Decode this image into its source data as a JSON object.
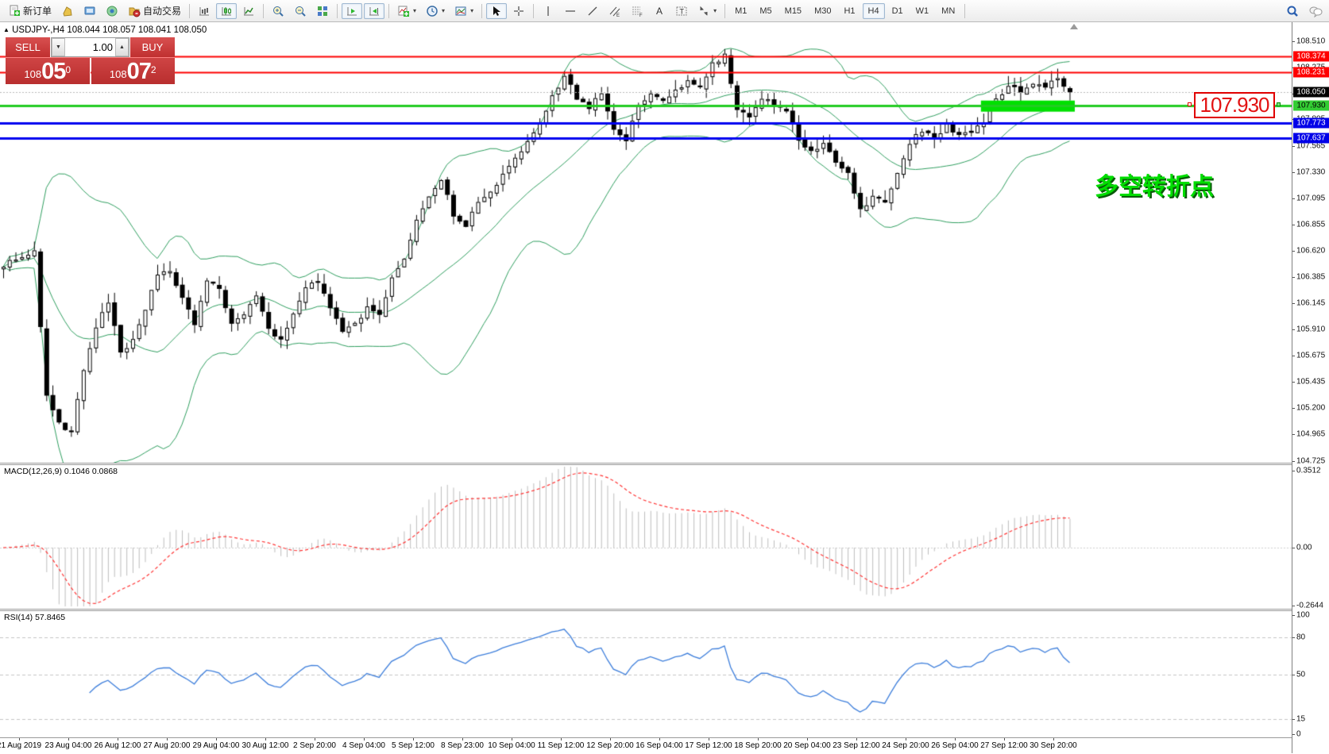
{
  "toolbar": {
    "items": [
      {
        "name": "new-order-button",
        "icon": "doc-plus",
        "label": "新订单"
      },
      {
        "name": "profiles-button",
        "icon": "profile"
      },
      {
        "name": "market-watch-button",
        "icon": "market-watch"
      },
      {
        "name": "navigator-button",
        "icon": "navigator"
      },
      {
        "name": "auto-trading-button",
        "icon": "autotrade",
        "label": "自动交易"
      },
      {
        "type": "sep"
      },
      {
        "name": "bar-chart-button",
        "icon": "bars"
      },
      {
        "name": "candle-chart-button",
        "icon": "candles",
        "active": true
      },
      {
        "name": "line-chart-button",
        "icon": "linechart"
      },
      {
        "type": "sep"
      },
      {
        "name": "zoom-in-button",
        "icon": "zoom-in"
      },
      {
        "name": "zoom-out-button",
        "icon": "zoom-out"
      },
      {
        "name": "tile-windows-button",
        "icon": "tile"
      },
      {
        "type": "sep"
      },
      {
        "name": "auto-scroll-button",
        "icon": "autoscroll",
        "active": true
      },
      {
        "name": "chart-shift-button",
        "icon": "shift",
        "active": true
      },
      {
        "type": "sep"
      },
      {
        "name": "indicators-button",
        "icon": "indicators",
        "dropdown": true
      },
      {
        "name": "periods-button",
        "icon": "clock",
        "dropdown": true
      },
      {
        "name": "templates-button",
        "icon": "template",
        "dropdown": true
      },
      {
        "type": "sep"
      },
      {
        "name": "cursor-button",
        "icon": "cursor",
        "active": true
      },
      {
        "name": "crosshair-button",
        "icon": "crosshair"
      },
      {
        "type": "sep"
      },
      {
        "name": "vertical-line-button",
        "icon": "vline"
      },
      {
        "name": "horizontal-line-button",
        "icon": "hline"
      },
      {
        "name": "trendline-button",
        "icon": "trend"
      },
      {
        "name": "channel-button",
        "icon": "channel"
      },
      {
        "name": "fibonacci-button",
        "icon": "fibo"
      },
      {
        "name": "text-button",
        "icon": "text"
      },
      {
        "name": "text-label-button",
        "icon": "tlabel"
      },
      {
        "name": "arrows-button",
        "icon": "arrows",
        "dropdown": true
      },
      {
        "type": "sep"
      },
      {
        "type": "tf",
        "name": "timeframe-m1",
        "label": "M1"
      },
      {
        "type": "tf",
        "name": "timeframe-m5",
        "label": "M5"
      },
      {
        "type": "tf",
        "name": "timeframe-m15",
        "label": "M15"
      },
      {
        "type": "tf",
        "name": "timeframe-m30",
        "label": "M30"
      },
      {
        "type": "tf",
        "name": "timeframe-h1",
        "label": "H1"
      },
      {
        "type": "tf",
        "name": "timeframe-h4",
        "label": "H4",
        "active": true
      },
      {
        "type": "tf",
        "name": "timeframe-d1",
        "label": "D1"
      },
      {
        "type": "tf",
        "name": "timeframe-w1",
        "label": "W1"
      },
      {
        "type": "tf",
        "name": "timeframe-mn",
        "label": "MN"
      },
      {
        "type": "sep"
      },
      {
        "type": "spacer"
      },
      {
        "name": "search-button",
        "icon": "search"
      },
      {
        "name": "chat-button",
        "icon": "chat"
      }
    ]
  },
  "chart_header": {
    "collapse_marker": "▲",
    "title": "USDJPY-,H4",
    "ohlc_text": "108.044 108.057 108.041 108.050"
  },
  "trade_panel": {
    "sell_label": "SELL",
    "buy_label": "BUY",
    "volume": "1.00",
    "sell_price": {
      "big_left": "108",
      "big": "05",
      "sup": "0"
    },
    "buy_price": {
      "big_left": "108",
      "big": "07",
      "sup": "2"
    }
  },
  "indicator_labels": {
    "macd": "MACD(12,26,9) 0.1046 0.0868",
    "rsi": "RSI(14) 57.8465"
  },
  "objects": {
    "callout_text": "107.930",
    "annotation_text": "多空转折点"
  },
  "chart_data": {
    "type": "candlestick",
    "symbol": "USDJPY",
    "timeframe": "H4",
    "current_ohlc": {
      "open": 108.044,
      "high": 108.057,
      "low": 108.041,
      "close": 108.05
    },
    "bid": "108.050",
    "ask": "108.072",
    "ylim": [
      104.715,
      108.68
    ],
    "n_candles": 174,
    "close_anchors": [
      [
        0,
        106.5
      ],
      [
        3,
        106.58
      ],
      [
        5,
        106.6
      ],
      [
        7,
        105.3
      ],
      [
        9,
        105.05
      ],
      [
        11,
        104.97
      ],
      [
        13,
        105.55
      ],
      [
        15,
        105.95
      ],
      [
        17,
        106.15
      ],
      [
        19,
        105.7
      ],
      [
        21,
        105.8
      ],
      [
        23,
        106.1
      ],
      [
        25,
        106.4
      ],
      [
        27,
        106.42
      ],
      [
        29,
        106.18
      ],
      [
        31,
        105.95
      ],
      [
        33,
        106.35
      ],
      [
        35,
        106.3
      ],
      [
        37,
        105.95
      ],
      [
        39,
        106.05
      ],
      [
        41,
        106.2
      ],
      [
        43,
        105.9
      ],
      [
        45,
        105.8
      ],
      [
        47,
        106.05
      ],
      [
        49,
        106.3
      ],
      [
        51,
        106.32
      ],
      [
        53,
        106.1
      ],
      [
        55,
        105.9
      ],
      [
        57,
        105.95
      ],
      [
        59,
        106.1
      ],
      [
        61,
        106.05
      ],
      [
        63,
        106.4
      ],
      [
        65,
        106.55
      ],
      [
        67,
        106.9
      ],
      [
        69,
        107.1
      ],
      [
        71,
        107.25
      ],
      [
        73,
        106.95
      ],
      [
        75,
        106.85
      ],
      [
        77,
        107.05
      ],
      [
        79,
        107.15
      ],
      [
        81,
        107.3
      ],
      [
        83,
        107.45
      ],
      [
        85,
        107.6
      ],
      [
        87,
        107.75
      ],
      [
        89,
        108.0
      ],
      [
        91,
        108.2
      ],
      [
        93,
        108.0
      ],
      [
        95,
        107.9
      ],
      [
        97,
        108.05
      ],
      [
        99,
        107.7
      ],
      [
        101,
        107.6
      ],
      [
        103,
        107.95
      ],
      [
        105,
        108.05
      ],
      [
        107,
        107.95
      ],
      [
        109,
        108.05
      ],
      [
        111,
        108.15
      ],
      [
        113,
        108.1
      ],
      [
        115,
        108.3
      ],
      [
        117,
        108.4
      ],
      [
        119,
        107.9
      ],
      [
        121,
        107.8
      ],
      [
        123,
        108.0
      ],
      [
        125,
        107.95
      ],
      [
        127,
        107.9
      ],
      [
        129,
        107.6
      ],
      [
        131,
        107.5
      ],
      [
        133,
        107.6
      ],
      [
        135,
        107.4
      ],
      [
        137,
        107.3
      ],
      [
        139,
        107.0
      ],
      [
        141,
        107.1
      ],
      [
        143,
        107.05
      ],
      [
        145,
        107.3
      ],
      [
        147,
        107.6
      ],
      [
        149,
        107.7
      ],
      [
        151,
        107.65
      ],
      [
        153,
        107.75
      ],
      [
        155,
        107.65
      ],
      [
        157,
        107.7
      ],
      [
        159,
        107.8
      ],
      [
        161,
        108.0
      ],
      [
        163,
        108.1
      ],
      [
        165,
        108.05
      ],
      [
        167,
        108.15
      ],
      [
        169,
        108.1
      ],
      [
        171,
        108.2
      ],
      [
        173,
        108.05
      ]
    ],
    "indicators": [
      {
        "type": "bollinger",
        "period": 20,
        "deviation": 2,
        "color": "#2f9e5f"
      },
      {
        "type": "macd",
        "fast": 12,
        "slow": 26,
        "signal": 9,
        "current_values": [
          0.1046,
          0.0868
        ],
        "hist_color": "#bdbdbd",
        "signal_color": "#ff3434"
      },
      {
        "type": "rsi",
        "period": 14,
        "current_value": 57.8465,
        "color": "#3d7edb",
        "levels": [
          80,
          50,
          15
        ]
      }
    ],
    "levels": [
      {
        "price": 108.374,
        "label": "108.374",
        "line_color": "#fe0000",
        "label_bg": "#fe0000",
        "label_fg": "#ffffff",
        "width": 2,
        "style": "solid"
      },
      {
        "price": 108.231,
        "label": "108.231",
        "line_color": "#fe0000",
        "label_bg": "#fe0000",
        "label_fg": "#ffffff",
        "width": 2,
        "style": "solid"
      },
      {
        "price": 108.05,
        "label": "108.050",
        "line_color": "#b8b8b8",
        "label_bg": "#000000",
        "label_fg": "#ffffff",
        "width": 1,
        "style": "dotted"
      },
      {
        "price": 107.93,
        "label": "107.930",
        "line_color": "#22cc22",
        "label_bg": "#33cc33",
        "label_fg": "#000000",
        "width": 3,
        "style": "solid"
      },
      {
        "price": 107.773,
        "label": "107.773",
        "line_color": "#0000f0",
        "label_bg": "#0000e8",
        "label_fg": "#ffffff",
        "width": 3,
        "style": "solid"
      },
      {
        "price": 107.637,
        "label": "107.637",
        "line_color": "#0000f0",
        "label_bg": "#0000e8",
        "label_fg": "#ffffff",
        "width": 3,
        "style": "solid"
      }
    ],
    "highlight_zone": {
      "price_top": 107.975,
      "price_bottom": 107.875,
      "from_candle": 159,
      "to_x": 1353,
      "color": "#00e000"
    },
    "price_ticks": [
      "108.510",
      "108.275",
      "108.040",
      "107.805",
      "107.565",
      "107.330",
      "107.095",
      "106.855",
      "106.620",
      "106.385",
      "106.145",
      "105.910",
      "105.675",
      "105.435",
      "105.200",
      "104.965",
      "104.725"
    ],
    "macd_ticks": [
      {
        "label": "0.3512",
        "value": 0.3512
      },
      {
        "label": "0.00",
        "value": 0
      },
      {
        "label": "-0.2644",
        "value": -0.2644
      }
    ],
    "rsi_ticks": [
      {
        "label": "100",
        "value": 100
      },
      {
        "label": "80",
        "value": 80
      },
      {
        "label": "50",
        "value": 50
      },
      {
        "label": "15",
        "value": 15
      },
      {
        "label": "0",
        "value": 0
      }
    ],
    "time_labels": [
      "21 Aug 2019",
      "23 Aug 04:00",
      "26 Aug 12:00",
      "27 Aug 20:00",
      "29 Aug 04:00",
      "30 Aug 12:00",
      "2 Sep 20:00",
      "4 Sep 04:00",
      "5 Sep 12:00",
      "8 Sep 23:00",
      "10 Sep 04:00",
      "11 Sep 12:00",
      "12 Sep 20:00",
      "16 Sep 04:00",
      "17 Sep 12:00",
      "18 Sep 20:00",
      "20 Sep 04:00",
      "23 Sep 12:00",
      "24 Sep 20:00",
      "26 Sep 04:00",
      "27 Sep 12:00",
      "30 Sep 20:00"
    ]
  }
}
